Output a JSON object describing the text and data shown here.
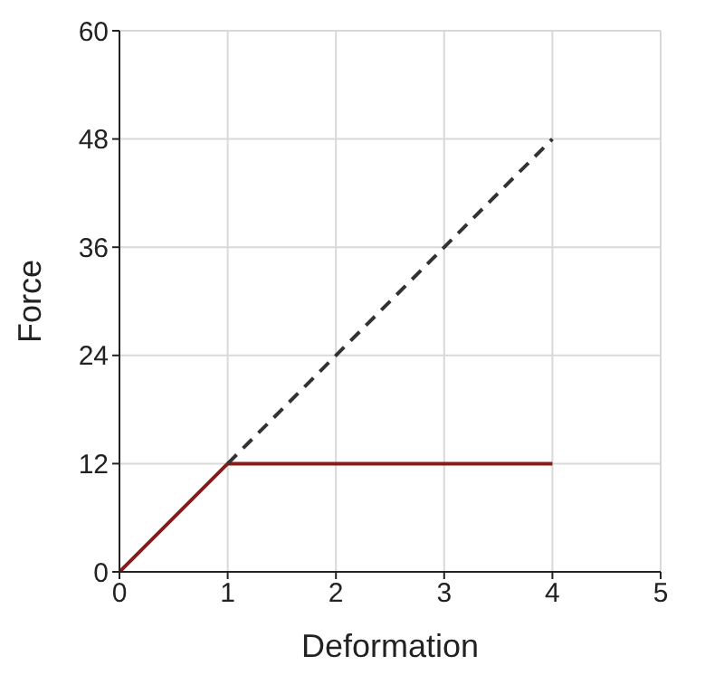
{
  "chart_data": {
    "type": "line",
    "xlabel": "Deformation",
    "ylabel": "Force",
    "series": [
      {
        "color": "#8b1a1a",
        "x": [
          0,
          1,
          4
        ],
        "values": [
          0,
          12,
          12
        ],
        "line_style": "solid"
      },
      {
        "color": "#333333",
        "x": [
          1,
          4
        ],
        "values": [
          12,
          48
        ],
        "line_style": "dashed"
      }
    ],
    "xlim": [
      0,
      5
    ],
    "xticks": [
      0,
      1,
      2,
      3,
      4,
      5
    ],
    "ylim": [
      0,
      60
    ],
    "yticks": [
      0,
      12,
      24,
      36,
      48,
      60
    ],
    "grid": true,
    "marker": "none"
  }
}
